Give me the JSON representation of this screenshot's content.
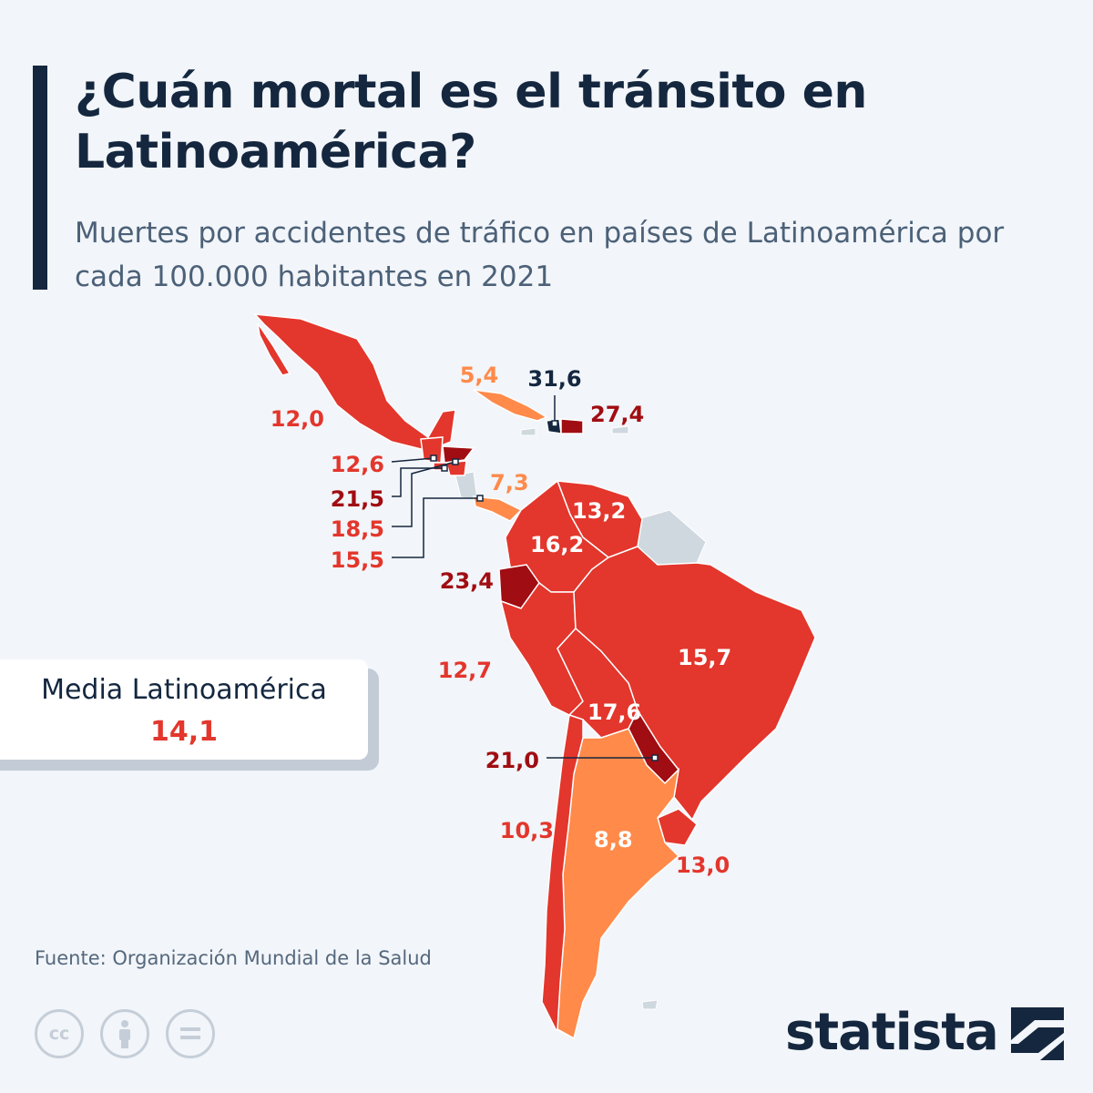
{
  "header": {
    "title": "¿Cuán mortal es el tránsito en Latinoamérica?",
    "subtitle": "Muertes por accidentes de tráfico en países de Latinoamérica por cada 100.000 habitantes en 2021"
  },
  "colors": {
    "navy": "#14273f",
    "red": "#e3362c",
    "dark_red": "#a00d12",
    "orange": "#ff8a4a",
    "grey": "#cfd8df",
    "background": "#f2f5f9"
  },
  "map_values": {
    "mexico": "12,0",
    "cuba": "5,4",
    "haiti": "31,6",
    "dominican_republic": "27,4",
    "guatemala": "12,6",
    "honduras": "21,5",
    "el_salvador": "18,5",
    "nicaragua": "15,5",
    "panama": "7,3",
    "venezuela": "13,2",
    "colombia": "16,2",
    "ecuador": "23,4",
    "peru": "12,7",
    "brazil": "15,7",
    "bolivia": "17,6",
    "paraguay": "21,0",
    "chile": "10,3",
    "argentina": "8,8",
    "uruguay": "13,0"
  },
  "average": {
    "label": "Media Latinoamérica",
    "value": "14,1"
  },
  "source": "Fuente: Organización Mundial de la Salud",
  "license_icons": [
    "cc-icon",
    "attribution-icon",
    "no-derivatives-icon"
  ],
  "logo": {
    "text": "statista",
    "icon": "statista-logo-icon"
  }
}
